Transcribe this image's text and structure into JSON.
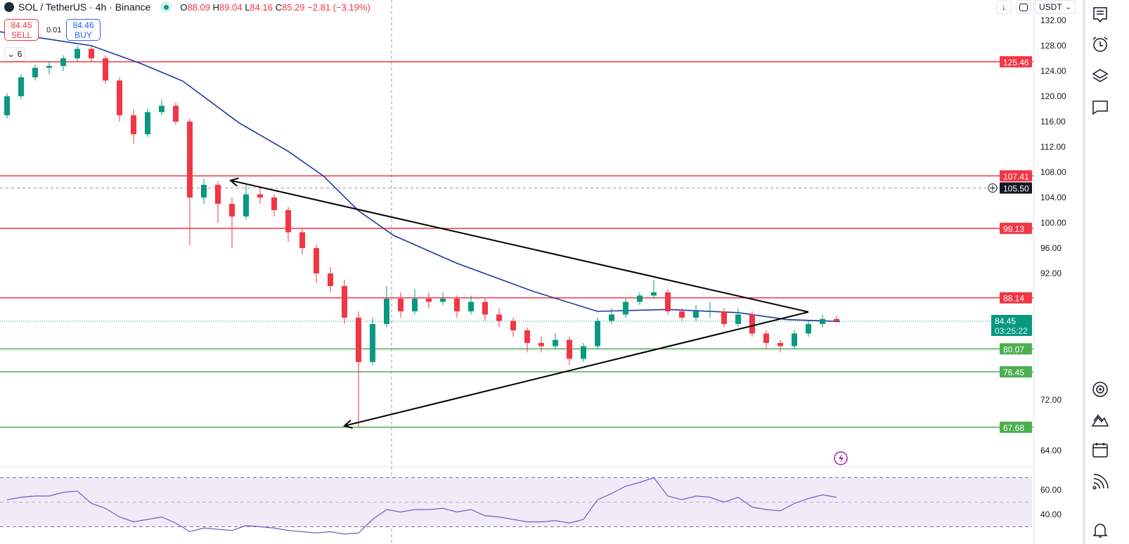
{
  "header": {
    "symbol": "SOL / TetherUS · 4h · Binance",
    "open_label": "O",
    "open": "88.09",
    "high_label": "H",
    "high": "89.04",
    "low_label": "L",
    "low": "84.16",
    "close_label": "C",
    "close": "85.29",
    "change": "−2.81 (−3.19%)"
  },
  "trade": {
    "sell_price": "84.45",
    "sell_label": "SELL",
    "spread": "0.01",
    "buy_price": "84.46",
    "buy_label": "BUY"
  },
  "indicators_collapsed_count": "6",
  "toolbar": {
    "currency": "USDT"
  },
  "colors": {
    "up": "#089981",
    "down": "#f23645",
    "ma": "#1e3a9e",
    "resistance": "#f23645",
    "support": "#4caf50",
    "rsi": "#7e57c2",
    "rsi_band": "#efebf8"
  },
  "sidebar_icons": [
    "watchlist-icon",
    "alarm-clock-icon",
    "layers-icon",
    "chat-icon",
    "target-icon",
    "mountains-icon",
    "calendar-icon",
    "signal-icon",
    "bell-icon"
  ],
  "chart_data": {
    "type": "candlestick",
    "title": "",
    "price_axis": {
      "range": [
        60,
        134
      ],
      "ticks": [
        "132.00",
        "128.00",
        "124.00",
        "120.00",
        "116.00",
        "112.00",
        "108.00",
        "104.00",
        "100.00",
        "96.00",
        "92.00",
        "72.00",
        "64.00"
      ],
      "tick_values": [
        132,
        128,
        124,
        120,
        116,
        112,
        108,
        104,
        100,
        96,
        92,
        72,
        64
      ]
    },
    "candles": [
      [
        117,
        120.5,
        116.5,
        120
      ],
      [
        120,
        123.5,
        119.5,
        123
      ],
      [
        123,
        125,
        122.5,
        124.5
      ],
      [
        124.5,
        125.5,
        123.5,
        124.8
      ],
      [
        124.8,
        126.5,
        124,
        126
      ],
      [
        126,
        128,
        125.5,
        127.5
      ],
      [
        127.5,
        128,
        125.5,
        126
      ],
      [
        126,
        126.5,
        122,
        122.5
      ],
      [
        122.5,
        123,
        116,
        117
      ],
      [
        117,
        118,
        112.5,
        114
      ],
      [
        114,
        118,
        113.5,
        117.5
      ],
      [
        117.5,
        119.5,
        117,
        118.5
      ],
      [
        118.5,
        119,
        115.5,
        116
      ],
      [
        116,
        116.5,
        96.5,
        104
      ],
      [
        104,
        107,
        103,
        106
      ],
      [
        106,
        106.5,
        100,
        103
      ],
      [
        103,
        104,
        96,
        101
      ],
      [
        101,
        106,
        100.5,
        104.5
      ],
      [
        104.5,
        105.5,
        103,
        104
      ],
      [
        104,
        104.5,
        101,
        102
      ],
      [
        102,
        102.5,
        97,
        98.5
      ],
      [
        98.5,
        99,
        95,
        96
      ],
      [
        96,
        96.5,
        90.5,
        92
      ],
      [
        92,
        93,
        89,
        90
      ],
      [
        90,
        91,
        84,
        85
      ],
      [
        85,
        86,
        67.68,
        78
      ],
      [
        78,
        85,
        77.5,
        84
      ],
      [
        84,
        90,
        83.5,
        88
      ],
      [
        88,
        89,
        85,
        86
      ],
      [
        86,
        89.5,
        85.5,
        88
      ],
      [
        88,
        89,
        86.5,
        87.5
      ],
      [
        87.5,
        89,
        87,
        88
      ],
      [
        88,
        88.5,
        85,
        86
      ],
      [
        86,
        88.5,
        85.5,
        87.5
      ],
      [
        87.5,
        88,
        84.5,
        85.5
      ],
      [
        85.5,
        86.5,
        83.5,
        84.5
      ],
      [
        84.5,
        85,
        82,
        83
      ],
      [
        83,
        83.5,
        79.5,
        81
      ],
      [
        81,
        82,
        79.5,
        80.5
      ],
      [
        80.5,
        82.5,
        80,
        81.5
      ],
      [
        81.5,
        82,
        77.5,
        78.5
      ],
      [
        78.5,
        81,
        78,
        80.5
      ],
      [
        80.5,
        85,
        80,
        84.5
      ],
      [
        84.5,
        86.5,
        84,
        85.5
      ],
      [
        85.5,
        88,
        85,
        87.5
      ],
      [
        87.5,
        89,
        87,
        88.5
      ],
      [
        88.5,
        91,
        88,
        89
      ],
      [
        89,
        89.5,
        85.5,
        86
      ],
      [
        86,
        86.5,
        84.5,
        85
      ],
      [
        85,
        87,
        84.5,
        86
      ],
      [
        86,
        87.5,
        85,
        86
      ],
      [
        86,
        86.5,
        83.5,
        84
      ],
      [
        84,
        86.5,
        83.5,
        85.5
      ],
      [
        85.5,
        86,
        82,
        82.5
      ],
      [
        82.5,
        83,
        80,
        81
      ],
      [
        81,
        81.5,
        79.5,
        80.5
      ],
      [
        80.5,
        83,
        80,
        82.5
      ],
      [
        82.5,
        84.5,
        82,
        84
      ],
      [
        84,
        85.5,
        83.5,
        84.8
      ],
      [
        84.8,
        85.2,
        84.2,
        84.45
      ]
    ],
    "moving_average": [
      [
        -0.5,
        130.2
      ],
      [
        6,
        128
      ],
      [
        9.5,
        125.2
      ],
      [
        12.5,
        122.4
      ],
      [
        16.5,
        115.8
      ],
      [
        20,
        111.3
      ],
      [
        22.5,
        107.4
      ],
      [
        25,
        101.9
      ],
      [
        27.5,
        98
      ],
      [
        32,
        93.6
      ],
      [
        37.5,
        89.1
      ],
      [
        42,
        86
      ],
      [
        47,
        86.3
      ],
      [
        52,
        85.8
      ],
      [
        55.5,
        84.7
      ],
      [
        59.25,
        84.4
      ]
    ],
    "levels": [
      {
        "price": 125.46,
        "label": "125.46",
        "kind": "resistance"
      },
      {
        "price": 107.41,
        "label": "107.41",
        "kind": "resistance"
      },
      {
        "price": 99.13,
        "label": "99.13",
        "kind": "resistance"
      },
      {
        "price": 88.14,
        "label": "88.14",
        "kind": "resistance"
      },
      {
        "price": 80.07,
        "label": "80.07",
        "kind": "support"
      },
      {
        "price": 76.45,
        "label": "76.45",
        "kind": "support"
      },
      {
        "price": 67.68,
        "label": "67.68",
        "kind": "support"
      }
    ],
    "trendlines": [
      [
        [
          15.9,
          106.7
        ],
        [
          57,
          85.9
        ]
      ],
      [
        [
          24,
          67.9
        ],
        [
          57,
          85.9
        ]
      ]
    ],
    "last_price": {
      "price": 84.45,
      "label": "84.45",
      "countdown": "03:25:22"
    },
    "crosshair": {
      "price": 105.5,
      "label": "105.50",
      "index": 27.35
    },
    "rsi": {
      "ticks": [
        "60.00",
        "40.00"
      ],
      "tick_values": [
        60,
        40
      ],
      "band": [
        30,
        70
      ],
      "values": [
        52,
        54,
        55,
        55,
        58,
        59,
        49,
        45,
        38,
        34,
        36,
        38,
        33,
        26,
        29,
        28,
        27,
        31,
        30,
        29,
        27,
        26,
        25,
        26,
        24,
        25,
        36,
        44,
        42,
        44,
        44,
        45,
        42,
        44,
        39,
        38,
        36,
        34,
        34,
        35,
        33,
        36,
        52,
        57,
        63,
        66,
        70,
        55,
        52,
        55,
        54,
        50,
        54,
        46,
        44,
        43,
        49,
        53,
        56,
        54
      ]
    }
  }
}
